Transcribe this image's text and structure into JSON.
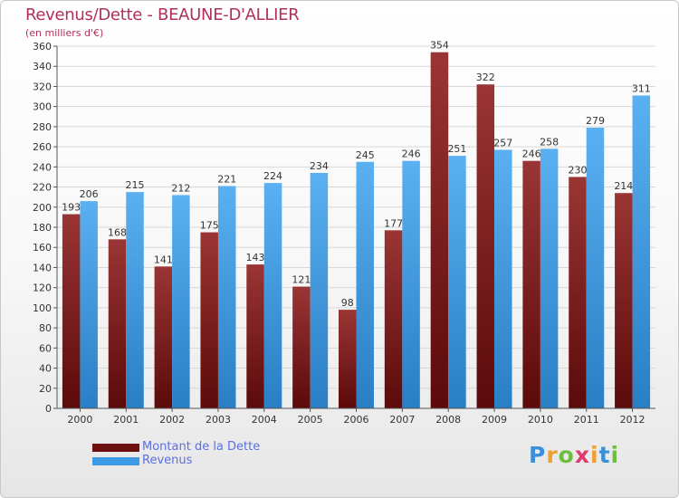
{
  "chart_data": {
    "type": "bar",
    "title": "Revenus/Dette - BEAUNE-D'ALLIER",
    "subtitle": "(en milliers d'€)",
    "categories": [
      "2000",
      "2001",
      "2002",
      "2003",
      "2004",
      "2005",
      "2006",
      "2007",
      "2008",
      "2009",
      "2010",
      "2011",
      "2012"
    ],
    "series": [
      {
        "name": "Montant de la Dette",
        "color": "#8b2020",
        "values": [
          193,
          168,
          141,
          175,
          143,
          121,
          98,
          177,
          354,
          322,
          246,
          230,
          214
        ]
      },
      {
        "name": "Revenus",
        "color": "#4aa3e8",
        "values": [
          206,
          215,
          212,
          221,
          224,
          234,
          245,
          246,
          251,
          257,
          258,
          279,
          311
        ]
      }
    ],
    "ylim": [
      0,
      360
    ],
    "ytick_step": 20,
    "grid": true,
    "xlabel": "",
    "ylabel": "",
    "legend_position": "bottom-left"
  },
  "legend": {
    "items": [
      {
        "label": "Montant de la Dette",
        "color": "#6b0f0f"
      },
      {
        "label": "Revenus",
        "color": "#3d9be6"
      }
    ]
  },
  "brand": {
    "letters": [
      "P",
      "r",
      "o",
      "x",
      "i",
      "t",
      "i"
    ],
    "colors": [
      "#3a8fd8",
      "#f0a030",
      "#6cbf3c",
      "#e03a6a",
      "#f0a030",
      "#3a8fd8",
      "#6cbf3c"
    ]
  }
}
